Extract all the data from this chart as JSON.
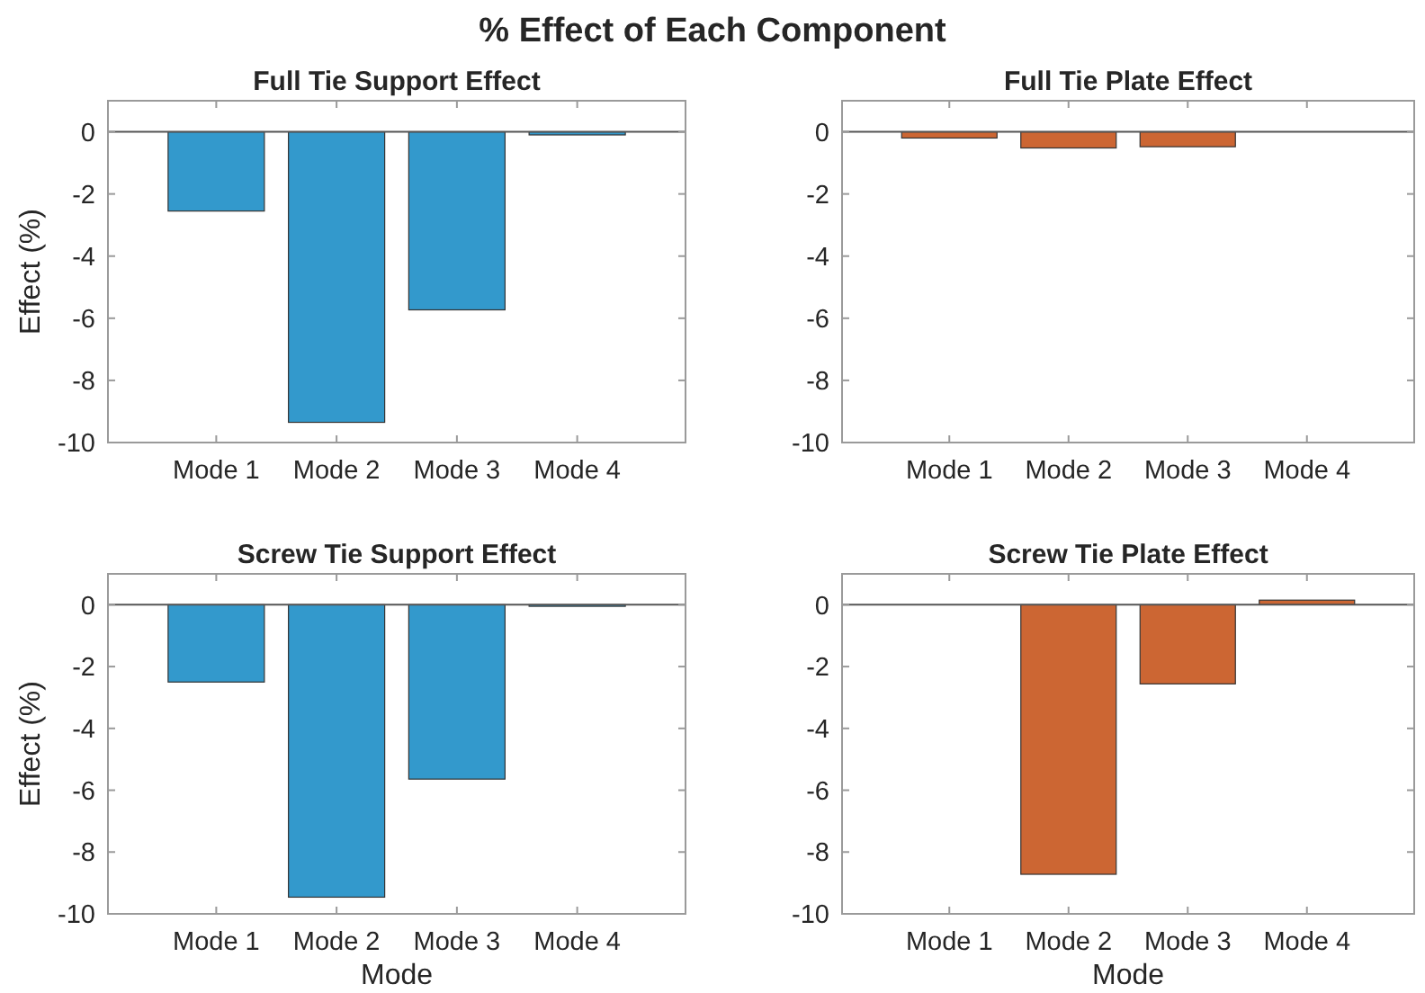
{
  "chart_data": [
    {
      "type": "other",
      "title": "% Effect of Each Component"
    },
    {
      "type": "bar",
      "title": "Full Tie Support Effect",
      "categories": [
        "Mode 1",
        "Mode 2",
        "Mode 3",
        "Mode 4"
      ],
      "values": [
        -2.55,
        -9.35,
        -5.73,
        -0.1
      ],
      "color": "#3399cc",
      "ylim": [
        -10,
        1
      ],
      "yticks": [
        0,
        -2,
        -4,
        -6,
        -8,
        -10
      ],
      "ylabel": "Effect (%)"
    },
    {
      "type": "bar",
      "title": "Full Tie Plate Effect",
      "categories": [
        "Mode 1",
        "Mode 2",
        "Mode 3",
        "Mode 4"
      ],
      "values": [
        -0.2,
        -0.52,
        -0.48,
        0
      ],
      "color": "#cc6633",
      "ylim": [
        -10,
        1
      ],
      "yticks": [
        0,
        -2,
        -4,
        -6,
        -8,
        -10
      ]
    },
    {
      "type": "bar",
      "title": "Screw Tie Support Effect",
      "categories": [
        "Mode 1",
        "Mode 2",
        "Mode 3",
        "Mode 4"
      ],
      "values": [
        -2.5,
        -9.46,
        -5.64,
        -0.05
      ],
      "color": "#3399cc",
      "ylim": [
        -10,
        1
      ],
      "yticks": [
        0,
        -2,
        -4,
        -6,
        -8,
        -10
      ],
      "ylabel": "Effect (%)",
      "xlabel": "Mode"
    },
    {
      "type": "bar",
      "title": "Screw Tie Plate Effect",
      "categories": [
        "Mode 1",
        "Mode 2",
        "Mode 3",
        "Mode 4"
      ],
      "values": [
        0,
        -8.72,
        -2.56,
        0.15
      ],
      "color": "#cc6633",
      "ylim": [
        -10,
        1
      ],
      "yticks": [
        0,
        -2,
        -4,
        -6,
        -8,
        -10
      ],
      "xlabel": "Mode"
    }
  ]
}
